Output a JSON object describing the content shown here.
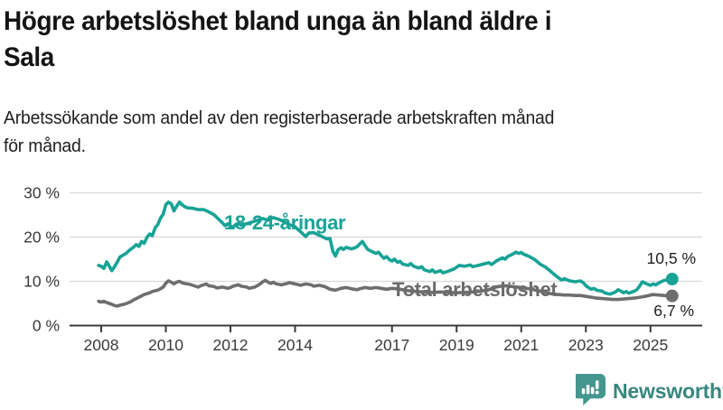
{
  "header": {
    "title": "Högre arbetslöshet bland unga än bland äldre i Sala",
    "title_lines": [
      "Högre arbetslöshet bland unga än bland äldre i",
      "Sala"
    ],
    "subtitle": "Arbetssökande som andel av den registerbaserade arbetskraften månad för månad.",
    "subtitle_lines": [
      "Arbetssökande som andel av den registerbaserade arbetskraften månad",
      "för månad."
    ]
  },
  "brand": {
    "name": "Newsworthy",
    "icon": "newsworthy-speech-bubble-bar-chart-icon",
    "icon_color": "#44968e",
    "text_color": "#38867e"
  },
  "colors": {
    "young_series": "#18a396",
    "total_series": "#6e6e6e",
    "gridline": "#d9d9d9",
    "axis": "#3a3a3a",
    "axis_text": "#3a3a3a",
    "annotation_text": "#1d1d1d"
  },
  "chart_data": {
    "type": "line",
    "title": "Högre arbetslöshet bland unga än bland äldre i Sala",
    "subtitle": "Arbetssökande som andel av den registerbaserade arbetskraften månad för månad.",
    "xlabel": "",
    "ylabel": "",
    "unit": "%",
    "xlim": [
      2007.8,
      2026.6
    ],
    "ylim": [
      0,
      32
    ],
    "grid": "horizontal",
    "legend": "inline-labels",
    "x_ticks": [
      2008,
      2010,
      2012,
      2014,
      2017,
      2019,
      2021,
      2023,
      2025
    ],
    "x_tick_labels": [
      "2008",
      "2010",
      "2012",
      "2014",
      "2017",
      "2019",
      "2021",
      "2023",
      "2025"
    ],
    "y_ticks": [
      0,
      10,
      20,
      30
    ],
    "y_tick_labels": [
      "0 %",
      "10 %",
      "20 %",
      "30 %"
    ],
    "series": [
      {
        "name": "18-24-åringar",
        "color": "#18a396",
        "end_label": "10,5 %",
        "end_value": 10.5,
        "points": [
          [
            2007.92,
            13.6
          ],
          [
            2008.0,
            13.4
          ],
          [
            2008.08,
            12.9
          ],
          [
            2008.17,
            14.4
          ],
          [
            2008.25,
            13.4
          ],
          [
            2008.33,
            12.4
          ],
          [
            2008.42,
            13.4
          ],
          [
            2008.5,
            14.4
          ],
          [
            2008.58,
            15.5
          ],
          [
            2008.75,
            16.2
          ],
          [
            2008.92,
            17.3
          ],
          [
            2009.0,
            17.7
          ],
          [
            2009.08,
            18.3
          ],
          [
            2009.17,
            17.9
          ],
          [
            2009.25,
            19.0
          ],
          [
            2009.33,
            18.6
          ],
          [
            2009.42,
            20.0
          ],
          [
            2009.5,
            20.7
          ],
          [
            2009.58,
            20.3
          ],
          [
            2009.67,
            22.1
          ],
          [
            2009.75,
            22.8
          ],
          [
            2009.83,
            24.2
          ],
          [
            2009.92,
            25.2
          ],
          [
            2010.0,
            27.3
          ],
          [
            2010.08,
            27.9
          ],
          [
            2010.17,
            27.5
          ],
          [
            2010.25,
            25.9
          ],
          [
            2010.33,
            26.9
          ],
          [
            2010.42,
            27.9
          ],
          [
            2010.5,
            27.3
          ],
          [
            2010.58,
            26.9
          ],
          [
            2010.67,
            26.6
          ],
          [
            2010.83,
            26.5
          ],
          [
            2011.0,
            26.2
          ],
          [
            2011.17,
            26.2
          ],
          [
            2011.33,
            25.7
          ],
          [
            2011.5,
            25.0
          ],
          [
            2011.58,
            24.4
          ],
          [
            2011.67,
            23.8
          ],
          [
            2011.75,
            23.2
          ],
          [
            2011.83,
            22.6
          ],
          [
            2011.92,
            23.0
          ],
          [
            2012.0,
            22.5
          ],
          [
            2012.08,
            22.2
          ],
          [
            2012.17,
            22.9
          ],
          [
            2012.25,
            23.1
          ],
          [
            2012.33,
            22.7
          ],
          [
            2012.5,
            23.0
          ],
          [
            2012.67,
            23.4
          ],
          [
            2012.83,
            23.8
          ],
          [
            2013.0,
            24.2
          ],
          [
            2013.17,
            23.8
          ],
          [
            2013.33,
            24.4
          ],
          [
            2013.5,
            24.0
          ],
          [
            2013.67,
            23.4
          ],
          [
            2013.83,
            22.8
          ],
          [
            2014.0,
            22.3
          ],
          [
            2014.17,
            21.2
          ],
          [
            2014.33,
            20.1
          ],
          [
            2014.42,
            20.9
          ],
          [
            2014.58,
            21.0
          ],
          [
            2014.75,
            20.4
          ],
          [
            2014.92,
            19.8
          ],
          [
            2015.0,
            19.6
          ],
          [
            2015.08,
            19.7
          ],
          [
            2015.17,
            16.8
          ],
          [
            2015.25,
            15.7
          ],
          [
            2015.33,
            17.1
          ],
          [
            2015.42,
            17.6
          ],
          [
            2015.5,
            17.2
          ],
          [
            2015.58,
            17.7
          ],
          [
            2015.75,
            17.3
          ],
          [
            2015.92,
            17.8
          ],
          [
            2016.0,
            18.4
          ],
          [
            2016.08,
            19.0
          ],
          [
            2016.17,
            18.0
          ],
          [
            2016.25,
            17.2
          ],
          [
            2016.33,
            16.9
          ],
          [
            2016.5,
            16.3
          ],
          [
            2016.58,
            16.6
          ],
          [
            2016.67,
            15.8
          ],
          [
            2016.75,
            15.2
          ],
          [
            2016.83,
            15.6
          ],
          [
            2016.92,
            14.9
          ],
          [
            2017.0,
            14.6
          ],
          [
            2017.08,
            15.0
          ],
          [
            2017.17,
            14.3
          ],
          [
            2017.25,
            14.5
          ],
          [
            2017.33,
            13.9
          ],
          [
            2017.5,
            13.6
          ],
          [
            2017.58,
            14.0
          ],
          [
            2017.67,
            13.4
          ],
          [
            2017.83,
            13.0
          ],
          [
            2017.92,
            13.3
          ],
          [
            2018.0,
            12.6
          ],
          [
            2018.17,
            12.2
          ],
          [
            2018.25,
            12.6
          ],
          [
            2018.33,
            12.0
          ],
          [
            2018.5,
            12.4
          ],
          [
            2018.58,
            11.9
          ],
          [
            2018.75,
            12.3
          ],
          [
            2018.92,
            12.8
          ],
          [
            2019.0,
            13.2
          ],
          [
            2019.08,
            13.6
          ],
          [
            2019.25,
            13.4
          ],
          [
            2019.42,
            13.7
          ],
          [
            2019.5,
            13.3
          ],
          [
            2019.67,
            13.6
          ],
          [
            2019.83,
            13.9
          ],
          [
            2020.0,
            14.2
          ],
          [
            2020.08,
            13.8
          ],
          [
            2020.25,
            14.7
          ],
          [
            2020.42,
            15.3
          ],
          [
            2020.5,
            15.0
          ],
          [
            2020.58,
            15.6
          ],
          [
            2020.75,
            16.2
          ],
          [
            2020.83,
            16.6
          ],
          [
            2020.92,
            16.3
          ],
          [
            2021.0,
            16.5
          ],
          [
            2021.08,
            16.1
          ],
          [
            2021.25,
            15.6
          ],
          [
            2021.42,
            14.9
          ],
          [
            2021.5,
            14.4
          ],
          [
            2021.58,
            13.9
          ],
          [
            2021.75,
            13.2
          ],
          [
            2021.92,
            12.2
          ],
          [
            2022.0,
            11.7
          ],
          [
            2022.08,
            11.2
          ],
          [
            2022.17,
            10.7
          ],
          [
            2022.25,
            10.3
          ],
          [
            2022.33,
            10.6
          ],
          [
            2022.5,
            10.1
          ],
          [
            2022.67,
            9.9
          ],
          [
            2022.83,
            10.1
          ],
          [
            2022.92,
            9.7
          ],
          [
            2023.0,
            9.0
          ],
          [
            2023.08,
            8.6
          ],
          [
            2023.17,
            8.2
          ],
          [
            2023.25,
            8.4
          ],
          [
            2023.33,
            8.0
          ],
          [
            2023.5,
            7.8
          ],
          [
            2023.58,
            7.4
          ],
          [
            2023.75,
            7.1
          ],
          [
            2023.92,
            7.6
          ],
          [
            2024.0,
            8.1
          ],
          [
            2024.08,
            7.8
          ],
          [
            2024.17,
            7.4
          ],
          [
            2024.25,
            7.7
          ],
          [
            2024.33,
            7.3
          ],
          [
            2024.5,
            7.8
          ],
          [
            2024.58,
            8.1
          ],
          [
            2024.67,
            9.0
          ],
          [
            2024.75,
            9.9
          ],
          [
            2024.83,
            9.6
          ],
          [
            2024.92,
            9.3
          ],
          [
            2025.0,
            9.1
          ],
          [
            2025.08,
            9.4
          ],
          [
            2025.17,
            9.2
          ],
          [
            2025.25,
            9.6
          ],
          [
            2025.33,
            9.9
          ],
          [
            2025.42,
            10.2
          ],
          [
            2025.67,
            10.5
          ]
        ]
      },
      {
        "name": "Total arbetslöshet",
        "color": "#6e6e6e",
        "end_label": "6,7 %",
        "end_value": 6.7,
        "points": [
          [
            2007.92,
            5.5
          ],
          [
            2008.0,
            5.3
          ],
          [
            2008.08,
            5.5
          ],
          [
            2008.17,
            5.2
          ],
          [
            2008.25,
            5.0
          ],
          [
            2008.33,
            4.8
          ],
          [
            2008.42,
            4.5
          ],
          [
            2008.5,
            4.4
          ],
          [
            2008.58,
            4.6
          ],
          [
            2008.75,
            4.9
          ],
          [
            2008.92,
            5.4
          ],
          [
            2009.0,
            5.8
          ],
          [
            2009.17,
            6.4
          ],
          [
            2009.33,
            7.0
          ],
          [
            2009.5,
            7.4
          ],
          [
            2009.58,
            7.7
          ],
          [
            2009.75,
            8.0
          ],
          [
            2009.83,
            8.3
          ],
          [
            2009.92,
            8.7
          ],
          [
            2010.0,
            9.6
          ],
          [
            2010.08,
            10.1
          ],
          [
            2010.17,
            9.8
          ],
          [
            2010.25,
            9.4
          ],
          [
            2010.33,
            9.8
          ],
          [
            2010.42,
            10.0
          ],
          [
            2010.5,
            9.7
          ],
          [
            2010.58,
            9.5
          ],
          [
            2010.75,
            9.3
          ],
          [
            2010.92,
            8.9
          ],
          [
            2011.0,
            8.7
          ],
          [
            2011.08,
            9.0
          ],
          [
            2011.25,
            9.4
          ],
          [
            2011.33,
            9.0
          ],
          [
            2011.5,
            8.8
          ],
          [
            2011.58,
            8.5
          ],
          [
            2011.75,
            8.7
          ],
          [
            2011.92,
            8.4
          ],
          [
            2012.0,
            8.6
          ],
          [
            2012.08,
            8.9
          ],
          [
            2012.25,
            9.2
          ],
          [
            2012.33,
            8.9
          ],
          [
            2012.5,
            8.7
          ],
          [
            2012.58,
            8.4
          ],
          [
            2012.75,
            8.7
          ],
          [
            2012.92,
            9.4
          ],
          [
            2013.0,
            9.9
          ],
          [
            2013.08,
            10.2
          ],
          [
            2013.17,
            9.8
          ],
          [
            2013.25,
            9.5
          ],
          [
            2013.33,
            9.8
          ],
          [
            2013.42,
            9.4
          ],
          [
            2013.58,
            9.2
          ],
          [
            2013.75,
            9.5
          ],
          [
            2013.83,
            9.7
          ],
          [
            2014.0,
            9.4
          ],
          [
            2014.17,
            9.1
          ],
          [
            2014.33,
            9.4
          ],
          [
            2014.5,
            9.2
          ],
          [
            2014.58,
            8.9
          ],
          [
            2014.75,
            9.1
          ],
          [
            2014.92,
            8.8
          ],
          [
            2015.0,
            8.5
          ],
          [
            2015.08,
            8.2
          ],
          [
            2015.25,
            8.0
          ],
          [
            2015.42,
            8.4
          ],
          [
            2015.58,
            8.6
          ],
          [
            2015.75,
            8.3
          ],
          [
            2015.92,
            8.1
          ],
          [
            2016.0,
            8.3
          ],
          [
            2016.17,
            8.6
          ],
          [
            2016.33,
            8.4
          ],
          [
            2016.5,
            8.6
          ],
          [
            2016.67,
            8.4
          ],
          [
            2016.83,
            8.2
          ],
          [
            2017.0,
            8.4
          ],
          [
            2017.17,
            8.3
          ],
          [
            2017.33,
            8.1
          ],
          [
            2017.5,
            7.9
          ],
          [
            2017.75,
            7.7
          ],
          [
            2018.0,
            7.6
          ],
          [
            2018.25,
            7.5
          ],
          [
            2018.5,
            7.6
          ],
          [
            2018.75,
            7.5
          ],
          [
            2019.0,
            7.4
          ],
          [
            2019.25,
            7.5
          ],
          [
            2019.5,
            7.6
          ],
          [
            2019.75,
            7.8
          ],
          [
            2020.0,
            8.1
          ],
          [
            2020.25,
            8.8
          ],
          [
            2020.5,
            9.0
          ],
          [
            2020.75,
            8.8
          ],
          [
            2021.0,
            8.6
          ],
          [
            2021.25,
            8.3
          ],
          [
            2021.5,
            7.9
          ],
          [
            2021.75,
            7.5
          ],
          [
            2021.92,
            7.2
          ],
          [
            2022.0,
            7.1
          ],
          [
            2022.17,
            7.0
          ],
          [
            2022.33,
            6.9
          ],
          [
            2022.5,
            6.9
          ],
          [
            2022.67,
            6.8
          ],
          [
            2022.83,
            6.8
          ],
          [
            2023.0,
            6.6
          ],
          [
            2023.17,
            6.4
          ],
          [
            2023.33,
            6.2
          ],
          [
            2023.5,
            6.1
          ],
          [
            2023.67,
            6.0
          ],
          [
            2023.83,
            5.9
          ],
          [
            2024.0,
            5.9
          ],
          [
            2024.17,
            6.0
          ],
          [
            2024.33,
            6.1
          ],
          [
            2024.5,
            6.2
          ],
          [
            2024.67,
            6.4
          ],
          [
            2024.83,
            6.6
          ],
          [
            2025.0,
            6.9
          ],
          [
            2025.08,
            7.0
          ],
          [
            2025.25,
            6.9
          ],
          [
            2025.42,
            6.8
          ],
          [
            2025.67,
            6.7
          ]
        ]
      }
    ]
  }
}
